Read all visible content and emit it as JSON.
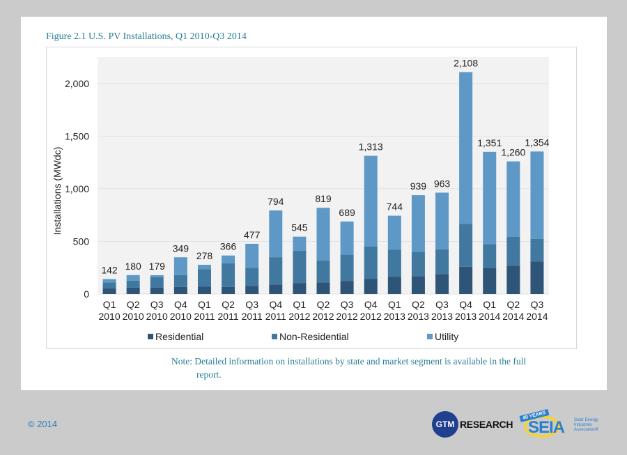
{
  "figure_title": "Figure 2.1  U.S. PV Installations, Q1 2010-Q3 2014",
  "note_line1": "Note: Detailed information on installations by state and market segment is available in the full",
  "note_line2": "report.",
  "copyright": "© 2014",
  "logos": {
    "gtm_badge": "GTM",
    "gtm_word": "RESEARCH",
    "seia_banner": "40 YEARS",
    "seia_word": "SEIA",
    "seia_sub": "Solar Energy Industries Association®"
  },
  "colors": {
    "residential": "#2e5478",
    "non_residential": "#41789f",
    "utility": "#5e98c7",
    "plot_bg": "#f2f2f2",
    "gridline": "#e2e2e2",
    "title": "#2a7f95"
  },
  "chart_data": {
    "type": "bar",
    "stacked": true,
    "title": "U.S. PV Installations, Q1 2010-Q3 2014",
    "xlabel": "",
    "ylabel": "Installations (MWdc)",
    "ylim": [
      0,
      2250
    ],
    "yticks": [
      0,
      500,
      1000,
      1500,
      2000
    ],
    "ytick_labels": [
      "0",
      "500",
      "1,000",
      "1,500",
      "2,000"
    ],
    "grid": true,
    "legend_position": "bottom",
    "categories": [
      "Q1 2010",
      "Q2 2010",
      "Q3 2010",
      "Q4 2010",
      "Q1 2011",
      "Q2 2011",
      "Q3 2011",
      "Q4 2011",
      "Q1 2012",
      "Q2 2012",
      "Q3 2012",
      "Q4 2012",
      "Q1 2013",
      "Q2 2013",
      "Q3 2013",
      "Q4 2013",
      "Q1 2014",
      "Q2 2014",
      "Q3 2014"
    ],
    "category_lines": [
      [
        "Q1",
        "2010"
      ],
      [
        "Q2",
        "2010"
      ],
      [
        "Q3",
        "2010"
      ],
      [
        "Q4",
        "2010"
      ],
      [
        "Q1",
        "2011"
      ],
      [
        "Q2",
        "2011"
      ],
      [
        "Q3",
        "2011"
      ],
      [
        "Q4",
        "2011"
      ],
      [
        "Q1",
        "2012"
      ],
      [
        "Q2",
        "2012"
      ],
      [
        "Q3",
        "2012"
      ],
      [
        "Q4",
        "2012"
      ],
      [
        "Q1",
        "2013"
      ],
      [
        "Q2",
        "2013"
      ],
      [
        "Q3",
        "2013"
      ],
      [
        "Q4",
        "2013"
      ],
      [
        "Q1",
        "2014"
      ],
      [
        "Q2",
        "2014"
      ],
      [
        "Q3",
        "2014"
      ]
    ],
    "totals": [
      142,
      180,
      179,
      349,
      278,
      366,
      477,
      794,
      545,
      819,
      689,
      1313,
      744,
      939,
      963,
      2108,
      1351,
      1260,
      1354
    ],
    "total_labels": [
      "142",
      "180",
      "179",
      "349",
      "278",
      "366",
      "477",
      "794",
      "545",
      "819",
      "689",
      "1,313",
      "744",
      "939",
      "963",
      "2,108",
      "1,351",
      "1,260",
      "1,354"
    ],
    "series": [
      {
        "name": "Residential",
        "values": [
          55,
          60,
          60,
          68,
          72,
          68,
          78,
          90,
          105,
          110,
          125,
          145,
          165,
          170,
          190,
          260,
          245,
          270,
          310
        ]
      },
      {
        "name": "Non-Residential",
        "values": [
          55,
          68,
          100,
          112,
          165,
          225,
          170,
          260,
          305,
          210,
          250,
          305,
          255,
          230,
          235,
          405,
          230,
          275,
          215
        ]
      },
      {
        "name": "Utility",
        "values": [
          32,
          52,
          19,
          169,
          41,
          73,
          229,
          444,
          135,
          499,
          314,
          863,
          324,
          539,
          538,
          1443,
          876,
          715,
          829
        ]
      }
    ]
  }
}
